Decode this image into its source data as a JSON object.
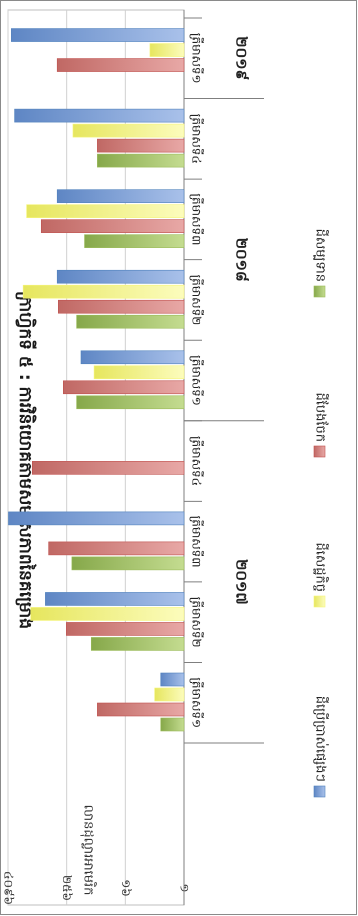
{
  "chart_data": {
    "type": "bar",
    "orientation": "horizontal",
    "title": "ក្រាហ្វិកទី ៥ : ការវិនិយោគតាមសមាសភាពនៃគម្រោង",
    "xlabel": "លានដុល្លារអាមេរិក",
    "x_tick_labels": [
      "១",
      "១៦",
      "២៥៦",
      "៤០៩៦"
    ],
    "x_scale": "log",
    "xlim": [
      1,
      4096
    ],
    "grid": true,
    "legend_position": "bottom",
    "categories": [
      "ត្រីមាសទី១",
      "ត្រីមាសទី២",
      "ត្រីមាសទី៣",
      "ត្រីមាសទី៤",
      "ត្រីមាសទី១",
      "ត្រីមាសទី២",
      "ត្រីមាសទី៣",
      "ត្រីមាសទី៤",
      "ត្រីមាសទី១"
    ],
    "year_groups": [
      {
        "label": "២០១៧",
        "count": 4
      },
      {
        "label": "២០១៨",
        "count": 4
      },
      {
        "label": "២០១៩",
        "count": 1
      }
    ],
    "series": [
      {
        "name": "ដីសម្បទាន",
        "color": "#9bbb59",
        "values": [
          3,
          80,
          200,
          null,
          160,
          160,
          110,
          60,
          null
        ]
      },
      {
        "name": "ដីបែងចែក",
        "color": "#c0504d",
        "values": [
          60,
          260,
          600,
          1300,
          300,
          380,
          850,
          60,
          400
        ]
      },
      {
        "name": "ដីសេដ្ឋកិច្ច",
        "color": "#f5f57a",
        "values": [
          4,
          1400,
          null,
          null,
          70,
          2000,
          1700,
          190,
          5
        ]
      },
      {
        "name": "ដីប្រើប្រាស់ផ្សេងៗ",
        "color": "#4f81bd",
        "values": [
          3,
          700,
          4000,
          null,
          130,
          400,
          400,
          3000,
          3500
        ]
      }
    ]
  }
}
